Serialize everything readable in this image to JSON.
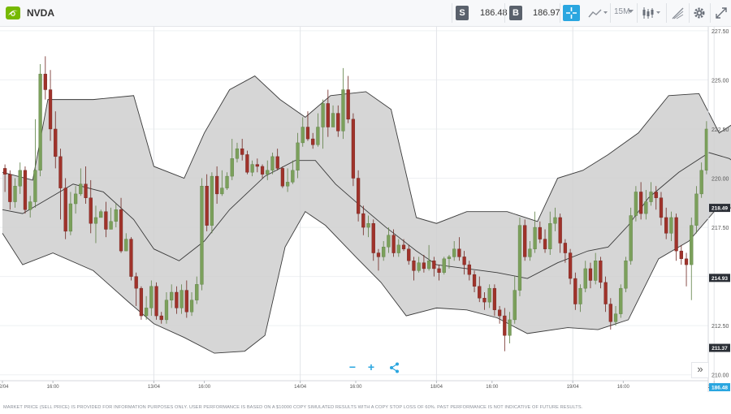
{
  "header": {
    "symbol": "NVDA",
    "sell_label": "S",
    "sell_price": "186.48",
    "buy_label": "B",
    "buy_price": "186.97",
    "timeframe": "15M",
    "brand_color": "#76b900",
    "accent_color": "#2aa6e0"
  },
  "icons": [
    "nvidia-logo-icon",
    "crosshair-icon",
    "line-chart-icon",
    "candlestick-icon",
    "drawing-icon",
    "gear-icon",
    "expand-icon",
    "zoom-out-icon",
    "zoom-in-icon",
    "share-icon",
    "double-chevron-icon"
  ],
  "footer": {
    "disclaimer": "MARKET PRICE (SELL PRICE) IS PROVIDED FOR INFORMATION PURPOSES ONLY. USER PERFORMANCE IS BASED ON A $10000 COPY SIMULATED RESULTS WITH A COPY STOP LOSS OF 60%. PAST PERFORMANCE IS NOT INDICATIVE OF FUTURE RESULTS."
  },
  "controls": {
    "zoom_out": "−",
    "zoom_in": "+",
    "scroll_right": "»"
  },
  "chart_data": {
    "type": "candlestick",
    "ylim": [
      209.7,
      227.7
    ],
    "ytick_labels": [
      "227.50",
      "225.00",
      "222.50",
      "220.00",
      "217.50",
      "215.00",
      "212.50",
      "210.00"
    ],
    "yticks": [
      227.5,
      225.0,
      222.5,
      220.0,
      217.5,
      215.0,
      212.5,
      210.0
    ],
    "xtick_labels": [
      "12/04",
      "16:00",
      "13/04",
      "16:00",
      "14/04",
      "16:00",
      "18/04",
      "16:00",
      "19/04",
      "16:00",
      "20/04",
      "16:00",
      "21/04",
      "16:00"
    ],
    "xtick_index": [
      0,
      10,
      30,
      40,
      59,
      70,
      86,
      97,
      113,
      123,
      141,
      152,
      170,
      181
    ],
    "day_separators": [
      30,
      59,
      86,
      113,
      141,
      170
    ],
    "price_tags": [
      {
        "label": "218.49",
        "value": 218.49,
        "style": "dark"
      },
      {
        "label": "214.93",
        "value": 214.93,
        "style": "dark"
      },
      {
        "label": "211.37",
        "value": 211.37,
        "style": "dark"
      },
      {
        "label": "186.48",
        "value": 209.15,
        "style": "blue"
      }
    ],
    "up_color": "#7ba05b",
    "down_color": "#a0322a",
    "band_fill": "#cfcfcf",
    "bollinger_upper": [
      [
        0,
        220.3
      ],
      [
        6,
        219.9
      ],
      [
        9,
        224.0
      ],
      [
        18,
        224.0
      ],
      [
        26,
        224.2
      ],
      [
        30,
        220.6
      ],
      [
        36,
        220.0
      ],
      [
        40,
        222.3
      ],
      [
        45,
        224.5
      ],
      [
        50,
        225.2
      ],
      [
        55,
        224.0
      ],
      [
        60,
        223.1
      ],
      [
        65,
        224.2
      ],
      [
        72,
        224.4
      ],
      [
        77,
        223.5
      ],
      [
        82,
        218.0
      ],
      [
        86,
        217.7
      ],
      [
        92,
        218.3
      ],
      [
        100,
        218.3
      ],
      [
        106,
        217.8
      ],
      [
        110,
        220.0
      ],
      [
        115,
        220.4
      ],
      [
        120,
        221.2
      ],
      [
        126,
        222.3
      ],
      [
        132,
        224.2
      ],
      [
        138,
        224.3
      ],
      [
        142,
        222.3
      ],
      [
        148,
        223.3
      ],
      [
        155,
        224.3
      ],
      [
        160,
        223.8
      ],
      [
        164,
        222.6
      ],
      [
        168,
        219.7
      ],
      [
        172,
        218.3
      ],
      [
        176,
        218.6
      ],
      [
        181,
        218.5
      ],
      [
        184,
        218.5
      ]
    ],
    "bollinger_lower": [
      [
        0,
        217.2
      ],
      [
        4,
        215.6
      ],
      [
        10,
        216.2
      ],
      [
        18,
        215.3
      ],
      [
        25,
        213.7
      ],
      [
        30,
        212.6
      ],
      [
        36,
        211.9
      ],
      [
        42,
        211.1
      ],
      [
        48,
        211.2
      ],
      [
        52,
        212.0
      ],
      [
        56,
        216.5
      ],
      [
        60,
        218.3
      ],
      [
        64,
        217.6
      ],
      [
        70,
        216.0
      ],
      [
        75,
        214.7
      ],
      [
        80,
        213.0
      ],
      [
        86,
        213.4
      ],
      [
        92,
        213.3
      ],
      [
        98,
        212.9
      ],
      [
        104,
        212.1
      ],
      [
        112,
        212.4
      ],
      [
        118,
        212.3
      ],
      [
        124,
        212.8
      ],
      [
        130,
        215.9
      ],
      [
        136,
        216.8
      ],
      [
        142,
        218.6
      ],
      [
        148,
        218.3
      ],
      [
        153,
        214.5
      ],
      [
        158,
        212.6
      ],
      [
        163,
        211.5
      ],
      [
        167,
        211.2
      ],
      [
        172,
        211.0
      ],
      [
        176,
        211.6
      ],
      [
        180,
        211.9
      ],
      [
        184,
        212.2
      ]
    ],
    "bollinger_mid": [
      [
        0,
        218.4
      ],
      [
        4,
        218.2
      ],
      [
        8,
        218.8
      ],
      [
        14,
        219.7
      ],
      [
        20,
        219.3
      ],
      [
        26,
        217.9
      ],
      [
        30,
        216.4
      ],
      [
        35,
        215.8
      ],
      [
        40,
        216.8
      ],
      [
        45,
        218.4
      ],
      [
        52,
        220.1
      ],
      [
        58,
        220.9
      ],
      [
        62,
        220.9
      ],
      [
        66,
        219.7
      ],
      [
        70,
        218.8
      ],
      [
        76,
        217.5
      ],
      [
        82,
        216.3
      ],
      [
        86,
        215.6
      ],
      [
        92,
        215.4
      ],
      [
        98,
        215.2
      ],
      [
        104,
        214.9
      ],
      [
        110,
        215.7
      ],
      [
        116,
        216.3
      ],
      [
        120,
        216.5
      ],
      [
        124,
        217.6
      ],
      [
        128,
        219.0
      ],
      [
        134,
        220.3
      ],
      [
        140,
        221.3
      ],
      [
        144,
        221.0
      ],
      [
        150,
        219.9
      ],
      [
        156,
        218.1
      ],
      [
        161,
        216.5
      ],
      [
        166,
        215.1
      ],
      [
        170,
        214.5
      ],
      [
        174,
        214.7
      ],
      [
        178,
        215.3
      ],
      [
        184,
        215.0
      ]
    ],
    "candles": [
      [
        220.5,
        220.2,
        220.7,
        219.3
      ],
      [
        220.2,
        218.8,
        220.4,
        218.4
      ],
      [
        218.8,
        219.6,
        220.0,
        218.5
      ],
      [
        219.6,
        220.4,
        220.8,
        219.2
      ],
      [
        220.4,
        218.4,
        220.6,
        218.2
      ],
      [
        218.4,
        218.8,
        219.1,
        218.0
      ],
      [
        218.8,
        220.4,
        223.0,
        218.5
      ],
      [
        220.4,
        225.3,
        225.8,
        220.1
      ],
      [
        225.3,
        224.5,
        226.2,
        224.0
      ],
      [
        224.5,
        222.5,
        225.5,
        221.9
      ],
      [
        222.5,
        221.1,
        223.4,
        220.5
      ],
      [
        221.1,
        219.5,
        221.5,
        217.9
      ],
      [
        219.5,
        217.3,
        220.0,
        216.9
      ],
      [
        217.3,
        218.7,
        219.3,
        217.1
      ],
      [
        218.7,
        219.2,
        219.6,
        218.2
      ],
      [
        219.2,
        219.7,
        220.5,
        219.1
      ],
      [
        219.7,
        219.0,
        220.6,
        218.7
      ],
      [
        219.0,
        217.7,
        219.9,
        217.2
      ],
      [
        217.7,
        218.0,
        218.6,
        216.7
      ],
      [
        218.0,
        218.3,
        218.4,
        218.1
      ],
      [
        218.3,
        217.4,
        218.8,
        217.0
      ],
      [
        217.4,
        217.8,
        218.5,
        217.4
      ],
      [
        217.8,
        218.4,
        218.7,
        217.5
      ],
      [
        218.4,
        216.3,
        219.0,
        216.2
      ],
      [
        216.3,
        216.9,
        217.2,
        216.3
      ],
      [
        216.9,
        215.0,
        217.0,
        214.8
      ],
      [
        215.0,
        214.4,
        215.2,
        213.5
      ],
      [
        214.4,
        213.0,
        214.5,
        212.8
      ],
      [
        213.0,
        213.4,
        214.0,
        212.8
      ],
      [
        213.4,
        214.5,
        214.8,
        213.0
      ],
      [
        214.5,
        213.0,
        214.7,
        212.8
      ],
      [
        213.0,
        212.8,
        213.2,
        212.6
      ],
      [
        212.8,
        213.8,
        214.2,
        212.6
      ],
      [
        213.8,
        214.2,
        214.6,
        213.4
      ],
      [
        214.2,
        213.4,
        214.5,
        213.1
      ],
      [
        213.4,
        214.3,
        214.6,
        213.1
      ],
      [
        214.3,
        213.2,
        214.8,
        212.9
      ],
      [
        213.2,
        213.8,
        214.2,
        213.0
      ],
      [
        213.8,
        214.6,
        215.0,
        213.6
      ],
      [
        214.6,
        219.6,
        220.0,
        214.3
      ],
      [
        219.6,
        217.6,
        220.2,
        217.3
      ],
      [
        217.6,
        220.1,
        220.3,
        217.2
      ],
      [
        220.1,
        219.2,
        220.6,
        218.7
      ],
      [
        219.2,
        219.5,
        220.4,
        219.1
      ],
      [
        219.5,
        220.1,
        220.3,
        219.4
      ],
      [
        220.1,
        221.0,
        222.0,
        219.9
      ],
      [
        221.0,
        221.5,
        221.8,
        220.8
      ],
      [
        221.5,
        221.2,
        222.0,
        220.9
      ],
      [
        221.2,
        220.3,
        221.4,
        220.2
      ],
      [
        220.3,
        220.7,
        220.9,
        220.1
      ],
      [
        220.7,
        220.6,
        221.0,
        220.3
      ],
      [
        220.6,
        220.2,
        220.7,
        220.0
      ],
      [
        220.2,
        220.4,
        220.9,
        219.9
      ],
      [
        220.4,
        221.1,
        221.3,
        220.2
      ],
      [
        221.1,
        220.5,
        221.5,
        220.4
      ],
      [
        220.5,
        219.6,
        220.6,
        219.5
      ],
      [
        219.6,
        219.8,
        220.5,
        219.3
      ],
      [
        219.8,
        220.4,
        220.9,
        219.7
      ],
      [
        220.4,
        221.8,
        222.3,
        220.0
      ],
      [
        221.8,
        222.6,
        223.1,
        221.6
      ],
      [
        222.6,
        222.0,
        223.4,
        221.9
      ],
      [
        222.0,
        221.7,
        222.3,
        221.5
      ],
      [
        221.7,
        222.6,
        223.3,
        221.6
      ],
      [
        222.6,
        223.8,
        224.0,
        221.5
      ],
      [
        223.8,
        222.6,
        224.5,
        222.1
      ],
      [
        222.6,
        223.3,
        223.7,
        222.6
      ],
      [
        223.3,
        222.4,
        223.7,
        222.1
      ],
      [
        222.4,
        224.5,
        225.6,
        222.0
      ],
      [
        224.5,
        223.0,
        225.2,
        222.8
      ],
      [
        223.0,
        220.0,
        223.3,
        219.6
      ],
      [
        220.0,
        218.2,
        220.4,
        217.8
      ],
      [
        218.2,
        217.5,
        218.6,
        217.1
      ],
      [
        217.5,
        217.7,
        218.1,
        217.0
      ],
      [
        217.7,
        216.2,
        217.9,
        215.8
      ],
      [
        216.2,
        216.0,
        216.4,
        215.3
      ],
      [
        216.0,
        216.5,
        216.8,
        215.8
      ],
      [
        216.5,
        217.1,
        217.5,
        216.2
      ],
      [
        217.1,
        216.2,
        217.4,
        216.0
      ],
      [
        216.2,
        216.6,
        216.9,
        216.0
      ],
      [
        216.6,
        216.4,
        216.9,
        216.3
      ],
      [
        216.4,
        215.8,
        216.6,
        215.6
      ],
      [
        215.8,
        215.3,
        216.0,
        214.8
      ],
      [
        215.3,
        215.7,
        216.0,
        215.2
      ],
      [
        215.7,
        215.4,
        216.1,
        215.2
      ],
      [
        215.4,
        215.8,
        216.6,
        215.3
      ],
      [
        215.8,
        215.4,
        216.0,
        215.0
      ],
      [
        215.4,
        215.2,
        215.6,
        214.8
      ],
      [
        215.2,
        215.9,
        216.0,
        215.1
      ],
      [
        215.9,
        216.0,
        216.1,
        215.4
      ],
      [
        216.0,
        216.4,
        216.8,
        215.8
      ],
      [
        216.4,
        216.0,
        217.0,
        215.8
      ],
      [
        216.0,
        215.6,
        216.3,
        215.1
      ],
      [
        215.6,
        215.1,
        215.8,
        214.8
      ],
      [
        215.1,
        214.5,
        215.3,
        214.2
      ],
      [
        214.5,
        213.9,
        215.0,
        213.7
      ],
      [
        213.9,
        213.7,
        214.2,
        213.3
      ],
      [
        213.7,
        214.4,
        214.6,
        213.4
      ],
      [
        214.4,
        213.3,
        214.6,
        213.0
      ],
      [
        213.3,
        213.0,
        213.5,
        212.6
      ],
      [
        213.0,
        212.0,
        213.4,
        211.2
      ],
      [
        212.0,
        212.8,
        213.2,
        211.6
      ],
      [
        212.8,
        214.3,
        215.0,
        212.6
      ],
      [
        214.3,
        217.6,
        218.0,
        214.0
      ],
      [
        217.6,
        216.0,
        217.9,
        215.8
      ],
      [
        216.0,
        216.4,
        216.8,
        215.8
      ],
      [
        216.4,
        217.5,
        218.3,
        216.2
      ],
      [
        217.5,
        216.9,
        217.8,
        216.7
      ],
      [
        216.9,
        216.4,
        217.4,
        216.2
      ],
      [
        216.4,
        217.7,
        218.3,
        216.1
      ],
      [
        217.7,
        218.0,
        218.5,
        217.3
      ],
      [
        218.0,
        216.7,
        218.2,
        216.2
      ],
      [
        216.7,
        216.2,
        216.9,
        215.7
      ],
      [
        216.2,
        214.9,
        216.4,
        214.6
      ],
      [
        214.9,
        213.6,
        215.2,
        213.3
      ],
      [
        213.6,
        214.4,
        214.6,
        213.2
      ],
      [
        214.4,
        215.4,
        215.8,
        214.2
      ],
      [
        215.4,
        214.8,
        215.7,
        214.4
      ],
      [
        214.8,
        215.8,
        216.2,
        214.6
      ],
      [
        215.8,
        214.7,
        216.0,
        214.4
      ],
      [
        214.7,
        213.6,
        215.0,
        213.2
      ],
      [
        213.6,
        212.7,
        213.9,
        212.3
      ],
      [
        212.7,
        213.1,
        213.5,
        212.5
      ],
      [
        213.1,
        214.4,
        214.6,
        212.9
      ],
      [
        214.4,
        215.8,
        216.0,
        214.2
      ],
      [
        215.8,
        218.1,
        218.5,
        215.6
      ],
      [
        218.1,
        219.3,
        219.6,
        217.8
      ],
      [
        219.3,
        218.2,
        219.8,
        217.9
      ],
      [
        218.2,
        218.8,
        219.4,
        217.9
      ],
      [
        218.8,
        219.3,
        219.8,
        218.6
      ],
      [
        219.3,
        219.0,
        219.6,
        218.4
      ],
      [
        219.0,
        218.0,
        219.3,
        217.6
      ],
      [
        218.0,
        217.2,
        218.5,
        216.9
      ],
      [
        217.2,
        218.0,
        218.3,
        216.8
      ],
      [
        218.0,
        216.3,
        218.2,
        215.8
      ],
      [
        216.3,
        215.9,
        216.6,
        215.6
      ],
      [
        215.9,
        215.6,
        216.2,
        214.5
      ],
      [
        215.6,
        217.6,
        218.0,
        213.8
      ],
      [
        217.6,
        219.2,
        219.6,
        217.2
      ],
      [
        219.2,
        220.4,
        220.8,
        219.0
      ],
      [
        220.4,
        222.5,
        222.9,
        220.2
      ]
    ]
  }
}
